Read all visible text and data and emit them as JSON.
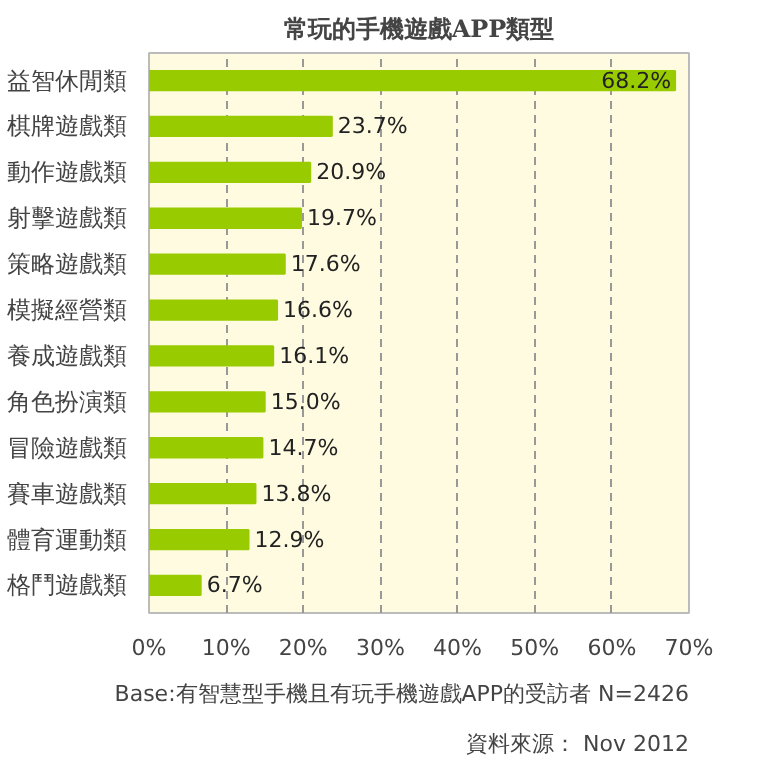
{
  "chart_data": {
    "type": "bar",
    "orientation": "horizontal",
    "title": "常玩的手機遊戲APP類型",
    "categories": [
      "益智休閒類",
      "棋牌遊戲類",
      "動作遊戲類",
      "射擊遊戲類",
      "策略遊戲類",
      "模擬經營類",
      "養成遊戲類",
      "角色扮演類",
      "冒險遊戲類",
      "賽車遊戲類",
      "體育運動類",
      "格鬥遊戲類"
    ],
    "values": [
      68.2,
      23.7,
      20.9,
      19.7,
      17.6,
      16.6,
      16.1,
      15.0,
      14.7,
      13.8,
      12.9,
      6.7
    ],
    "value_labels": [
      "68.2%",
      "23.7%",
      "20.9%",
      "19.7%",
      "17.6%",
      "16.6%",
      "16.1%",
      "15.0%",
      "14.7%",
      "13.8%",
      "12.9%",
      "6.7%"
    ],
    "color": "#99cc00",
    "xlim": [
      0,
      70
    ],
    "xticks": [
      {
        "value": 0,
        "label": "0%"
      },
      {
        "value": 10,
        "label": "10%"
      },
      {
        "value": 20,
        "label": "20%"
      },
      {
        "value": 30,
        "label": "30%"
      },
      {
        "value": 40,
        "label": "40%"
      },
      {
        "value": 50,
        "label": "50%"
      },
      {
        "value": 60,
        "label": "60%"
      },
      {
        "value": 70,
        "label": "70%"
      }
    ],
    "grid": "x",
    "annotations": [
      "Base:有智慧型手機且有玩手機遊戲APP的受訪者 N=2426",
      "資料來源： Nov 2012"
    ]
  }
}
